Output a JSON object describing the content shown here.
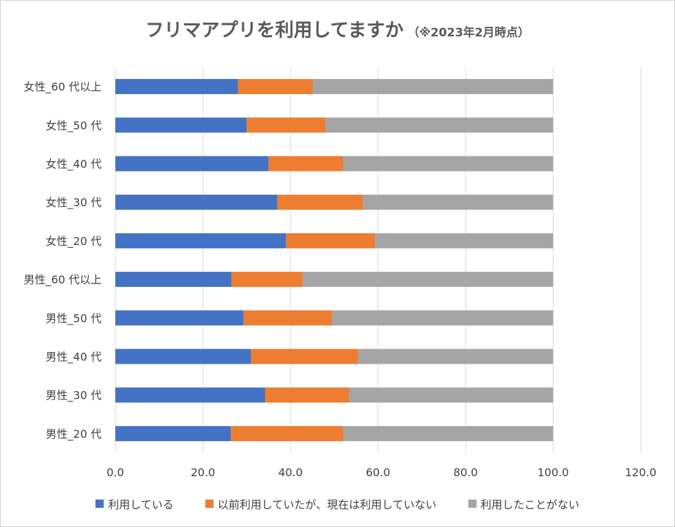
{
  "chart_data": {
    "type": "bar",
    "orientation": "horizontal",
    "stacked": true,
    "title": "フリマアプリを利用してますか",
    "subtitle": "（※2023年2月時点）",
    "categories": [
      "女性_60 代以上",
      "女性_50 代",
      "女性_40 代",
      "女性_30 代",
      "女性_20 代",
      "男性_60 代以上",
      "男性_50 代",
      "男性_40 代",
      "男性_30 代",
      "男性_20 代"
    ],
    "series": [
      {
        "name": "利用している",
        "color": "#4472C4",
        "values": [
          28.0,
          30.0,
          35.0,
          37.0,
          39.0,
          26.5,
          29.3,
          31.0,
          34.2,
          26.4
        ]
      },
      {
        "name": "以前利用していたが、現在は利用していない",
        "color": "#ED7D31",
        "values": [
          17.1,
          18.0,
          17.0,
          19.6,
          20.3,
          16.3,
          20.2,
          24.5,
          19.2,
          25.6
        ]
      },
      {
        "name": "利用したことがない",
        "color": "#A5A5A5",
        "values": [
          54.9,
          52.0,
          48.0,
          43.4,
          40.7,
          57.2,
          50.5,
          44.5,
          46.6,
          48.0
        ]
      }
    ],
    "xlim": [
      0,
      120
    ],
    "xticks": [
      "0.0",
      "20.0",
      "40.0",
      "60.0",
      "80.0",
      "100.0",
      "120.0"
    ],
    "xlabel": "",
    "ylabel": "",
    "grid": true,
    "legend_position": "bottom"
  }
}
